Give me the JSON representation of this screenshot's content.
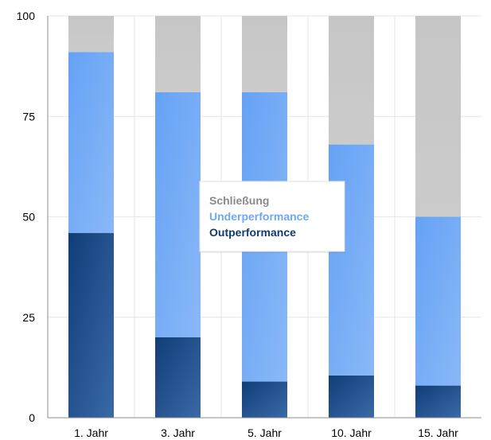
{
  "chart_data": {
    "type": "bar",
    "stacked": true,
    "title": "",
    "xlabel": "",
    "ylabel": "",
    "categories": [
      "1. Jahr",
      "3. Jahr",
      "5. Jahr",
      "10. Jahr",
      "15. Jahr"
    ],
    "series": [
      {
        "name": "Outperformance",
        "values": [
          46,
          20,
          9,
          10.5,
          8
        ],
        "color": "#1f4e8c"
      },
      {
        "name": "Underperformance",
        "values": [
          45,
          61,
          72,
          57.5,
          42
        ],
        "color": "#6fa8f5"
      },
      {
        "name": "Schließung",
        "values": [
          9,
          19,
          19,
          32,
          50
        ],
        "color": "#c8c8c8"
      }
    ],
    "ylim": [
      0,
      100
    ],
    "yticks": [
      "0",
      "25",
      "50",
      "75",
      "100"
    ],
    "grid": true,
    "legend_position": "center",
    "legend_order": [
      "Schließung",
      "Underperformance",
      "Outperformance"
    ],
    "legend_colors": {
      "Schließung": "#8a8a8a",
      "Underperformance": "#6fa8f5",
      "Outperformance": "#0f3a73"
    }
  }
}
